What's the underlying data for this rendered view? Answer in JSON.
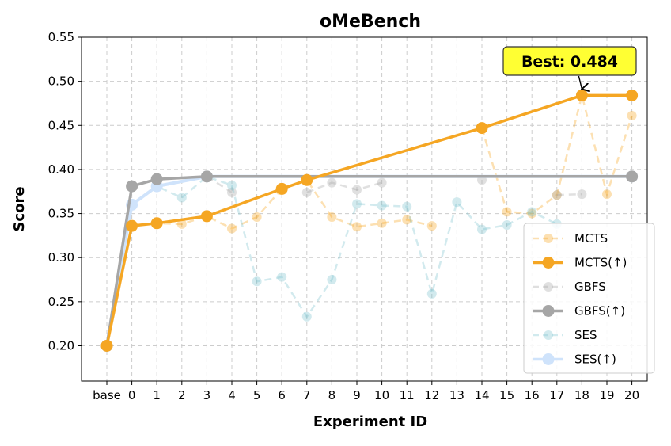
{
  "chart_data": {
    "type": "line",
    "title": "oMeBench",
    "xlabel": "Experiment ID",
    "ylabel": "Score",
    "categories": [
      "base",
      "0",
      "1",
      "2",
      "3",
      "4",
      "5",
      "6",
      "7",
      "8",
      "9",
      "10",
      "11",
      "12",
      "13",
      "14",
      "15",
      "16",
      "17",
      "18",
      "19",
      "20"
    ],
    "ylim": [
      0.16,
      0.55
    ],
    "yticks": [
      "0.20",
      "0.25",
      "0.30",
      "0.35",
      "0.40",
      "0.45",
      "0.50",
      "0.55"
    ],
    "grid": true,
    "legend_position": "lower-right",
    "annotation": {
      "text": "Best: 0.484",
      "x": "18",
      "y": 0.484
    },
    "series": [
      {
        "name": "MCTS",
        "style": "dashed-faded",
        "color": "#f5a623",
        "values": [
          0.2,
          0.336,
          0.339,
          0.338,
          0.347,
          0.333,
          0.346,
          0.378,
          0.388,
          0.346,
          0.335,
          0.339,
          0.343,
          0.336,
          null,
          0.447,
          0.352,
          0.35,
          0.371,
          0.484,
          0.372,
          0.461
        ]
      },
      {
        "name": "MCTS(↑)",
        "style": "solid",
        "color": "#f5a623",
        "values": [
          0.2,
          0.336,
          0.339,
          null,
          0.347,
          null,
          null,
          0.378,
          0.388,
          null,
          null,
          null,
          null,
          null,
          null,
          0.447,
          null,
          null,
          null,
          0.484,
          null,
          0.484
        ]
      },
      {
        "name": "GBFS",
        "style": "dashed-faded",
        "color": "#a6a6a6",
        "values": [
          0.2,
          0.381,
          0.389,
          null,
          0.392,
          0.374,
          null,
          null,
          0.374,
          0.385,
          0.377,
          0.385,
          null,
          null,
          null,
          0.388,
          null,
          null,
          0.371,
          0.372,
          null,
          0.392
        ]
      },
      {
        "name": "GBFS(↑)",
        "style": "solid",
        "color": "#a6a6a6",
        "values": [
          0.2,
          0.381,
          0.389,
          null,
          0.392,
          null,
          null,
          null,
          null,
          null,
          null,
          null,
          null,
          null,
          null,
          null,
          null,
          null,
          null,
          null,
          null,
          0.392
        ]
      },
      {
        "name": "SES",
        "style": "dashed-faded",
        "color": "#7ec4cf",
        "values": [
          0.2,
          0.36,
          0.381,
          0.368,
          0.392,
          0.382,
          0.273,
          0.278,
          0.233,
          0.275,
          0.361,
          0.359,
          0.358,
          0.259,
          0.363,
          0.332,
          0.337,
          0.352,
          0.338,
          null,
          null,
          null
        ]
      },
      {
        "name": "SES(↑)",
        "style": "solid",
        "color": "#cfe3fb",
        "values": [
          0.2,
          0.36,
          0.381,
          null,
          0.392,
          null,
          null,
          null,
          null,
          null,
          null,
          null,
          null,
          null,
          null,
          null,
          null,
          null,
          null,
          null,
          null,
          0.392
        ]
      }
    ]
  }
}
